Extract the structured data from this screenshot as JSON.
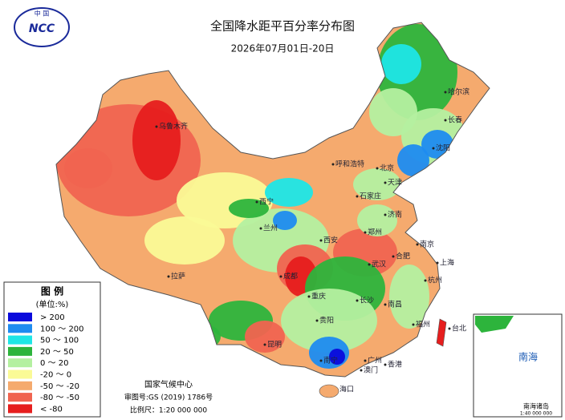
{
  "header": {
    "logo_top": "中 国",
    "logo_text": "NCC",
    "title": "全国降水距平百分率分布图",
    "subtitle": "2026年07月01日-20日"
  },
  "legend": {
    "title": "图 例",
    "unit": "(单位:%)",
    "items": [
      {
        "label": "> 200",
        "color": "#0a0adc"
      },
      {
        "label": "100 ～ 200",
        "color": "#1e8cf0"
      },
      {
        "label": "50 ～ 100",
        "color": "#1ee6e6"
      },
      {
        "label": "20 ～ 50",
        "color": "#2db43c"
      },
      {
        "label": "0 ～ 20",
        "color": "#b4f0a0"
      },
      {
        "label": "-20 ～ 0",
        "color": "#fafa96"
      },
      {
        "label": "-50 ～ -20",
        "color": "#f5aa6e"
      },
      {
        "label": "-80 ～ -50",
        "color": "#f06450"
      },
      {
        "label": "< -80",
        "color": "#e61e1e"
      }
    ]
  },
  "cities": [
    "乌鲁木齐",
    "拉萨",
    "西宁",
    "兰州",
    "呼和浩特",
    "哈尔滨",
    "长春",
    "沈阳",
    "北京",
    "天津",
    "石家庄",
    "济南",
    "郑州",
    "西安",
    "武汉",
    "合肥",
    "南京",
    "上海",
    "杭州",
    "成都",
    "重庆",
    "贵阳",
    "昆明",
    "南宁",
    "广州",
    "香港",
    "澳门",
    "海口",
    "福州",
    "台北",
    "长沙",
    "南昌"
  ],
  "inset": {
    "label": "南海",
    "caption": "南海诸岛",
    "scale": "1:40 000 000"
  },
  "footer": {
    "org": "国家气候中心",
    "approval": "审图号:GS (2019) 1786号",
    "scale": "比例尺：1:20 000 000"
  }
}
